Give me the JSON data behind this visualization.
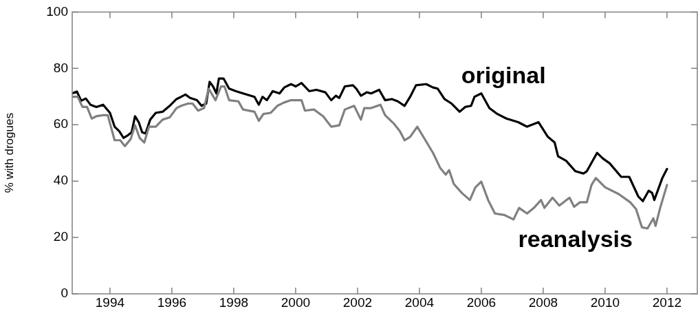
{
  "chart_data": {
    "type": "line",
    "ylabel": "% with drogues",
    "xlim": [
      1992.78,
      2012.98
    ],
    "xticks": [
      1994,
      1996,
      1998,
      2000,
      2002,
      2004,
      2006,
      2008,
      2010,
      2012
    ],
    "ylim": [
      0,
      100
    ],
    "yticks": [
      0,
      20,
      40,
      60,
      80,
      100
    ],
    "grid": false,
    "legend": false,
    "marker": "none",
    "line_style": "solid",
    "series": [
      {
        "name": "original",
        "color": "#000000",
        "x": [
          1992.78,
          1992.93,
          1993.07,
          1993.22,
          1993.37,
          1993.56,
          1993.78,
          1994.0,
          1994.15,
          1994.3,
          1994.44,
          1994.56,
          1994.7,
          1994.81,
          1994.93,
          1995.04,
          1995.15,
          1995.3,
          1995.48,
          1995.7,
          1995.93,
          1996.15,
          1996.3,
          1996.44,
          1996.59,
          1996.81,
          1996.96,
          1997.11,
          1997.22,
          1997.33,
          1997.44,
          1997.52,
          1997.67,
          1997.85,
          1998.07,
          1998.3,
          1998.67,
          1998.81,
          1998.93,
          1999.07,
          1999.26,
          1999.48,
          1999.63,
          1999.85,
          2000.0,
          2000.19,
          2000.44,
          2000.67,
          2000.96,
          2001.15,
          2001.3,
          2001.41,
          2001.59,
          2001.85,
          2001.96,
          2002.11,
          2002.3,
          2002.44,
          2002.7,
          2002.89,
          2003.11,
          2003.3,
          2003.52,
          2003.7,
          2003.89,
          2004.22,
          2004.44,
          2004.59,
          2004.81,
          2005.04,
          2005.3,
          2005.48,
          2005.67,
          2005.78,
          2006.0,
          2006.26,
          2006.52,
          2006.81,
          2007.19,
          2007.48,
          2007.85,
          2008.15,
          2008.37,
          2008.48,
          2008.74,
          2009.04,
          2009.3,
          2009.41,
          2009.74,
          2009.93,
          2010.15,
          2010.52,
          2010.78,
          2011.07,
          2011.22,
          2011.41,
          2011.52,
          2011.59,
          2011.7,
          2011.85,
          2012.0
        ],
        "values": [
          71.1,
          71.8,
          68.5,
          69.3,
          67.1,
          66.3,
          67.1,
          64.2,
          59.3,
          57.7,
          55.3,
          56.1,
          57.3,
          63.0,
          60.9,
          57.3,
          56.9,
          61.8,
          64.2,
          64.6,
          66.7,
          69.1,
          69.9,
          70.7,
          69.5,
          68.7,
          66.7,
          67.5,
          75.2,
          73.6,
          71.1,
          76.4,
          76.4,
          72.8,
          71.9,
          71.1,
          69.9,
          67.1,
          69.9,
          68.7,
          71.9,
          71.1,
          73.2,
          74.4,
          73.6,
          74.8,
          71.9,
          72.4,
          71.5,
          68.7,
          70.3,
          69.5,
          73.6,
          74.0,
          72.8,
          70.3,
          71.5,
          71.1,
          72.4,
          68.7,
          69.1,
          68.3,
          66.7,
          69.9,
          74.0,
          74.4,
          73.2,
          72.8,
          69.1,
          67.5,
          64.6,
          66.3,
          66.7,
          69.9,
          71.1,
          65.9,
          63.8,
          62.2,
          60.9,
          59.3,
          60.9,
          55.7,
          53.7,
          48.8,
          47.2,
          43.5,
          42.7,
          43.5,
          50.0,
          48.0,
          46.3,
          41.5,
          41.5,
          34.6,
          32.9,
          36.6,
          35.8,
          33.3,
          36.6,
          41.1,
          44.3
        ]
      },
      {
        "name": "reanalysis",
        "color": "#808080",
        "x": [
          1992.78,
          1992.96,
          1993.11,
          1993.26,
          1993.41,
          1993.56,
          1993.78,
          1993.93,
          1994.07,
          1994.15,
          1994.33,
          1994.48,
          1994.67,
          1994.81,
          1994.96,
          1995.11,
          1995.26,
          1995.48,
          1995.7,
          1995.93,
          1996.15,
          1996.3,
          1996.52,
          1996.67,
          1996.85,
          1997.04,
          1997.19,
          1997.41,
          1997.59,
          1997.7,
          1997.85,
          1998.15,
          1998.3,
          1998.67,
          1998.81,
          1998.96,
          1999.19,
          1999.41,
          1999.63,
          1999.85,
          2000.19,
          2000.3,
          2000.59,
          2000.89,
          2001.15,
          2001.41,
          2001.59,
          2001.89,
          2002.11,
          2002.22,
          2002.44,
          2002.74,
          2002.89,
          2003.19,
          2003.37,
          2003.52,
          2003.7,
          2003.93,
          2004.15,
          2004.44,
          2004.67,
          2004.85,
          2004.96,
          2005.11,
          2005.37,
          2005.63,
          2005.81,
          2006.0,
          2006.22,
          2006.44,
          2006.74,
          2007.04,
          2007.22,
          2007.48,
          2007.7,
          2007.93,
          2008.04,
          2008.3,
          2008.52,
          2008.85,
          2009.0,
          2009.19,
          2009.41,
          2009.56,
          2009.7,
          2010.0,
          2010.44,
          2010.81,
          2011.0,
          2011.19,
          2011.37,
          2011.56,
          2011.63,
          2011.78,
          2012.0
        ],
        "values": [
          69.9,
          69.9,
          66.3,
          66.3,
          62.2,
          63.0,
          63.4,
          63.4,
          57.7,
          54.5,
          54.5,
          52.4,
          54.9,
          59.8,
          55.3,
          53.7,
          59.3,
          59.3,
          61.8,
          62.6,
          65.9,
          66.7,
          67.5,
          67.5,
          65.0,
          65.9,
          72.8,
          68.7,
          73.6,
          73.6,
          68.7,
          68.3,
          65.4,
          64.6,
          61.4,
          63.8,
          64.2,
          66.7,
          67.9,
          68.7,
          68.7,
          65.0,
          65.4,
          63.0,
          59.3,
          59.8,
          65.4,
          66.7,
          61.8,
          65.9,
          65.9,
          67.1,
          63.4,
          60.2,
          57.7,
          54.5,
          55.7,
          59.3,
          55.3,
          50.0,
          44.7,
          42.3,
          43.9,
          39.0,
          35.8,
          33.3,
          37.8,
          39.8,
          33.3,
          28.5,
          28.0,
          26.4,
          30.5,
          28.5,
          30.5,
          33.3,
          30.5,
          34.1,
          31.3,
          34.1,
          30.9,
          32.5,
          32.5,
          38.6,
          41.1,
          37.8,
          35.4,
          32.5,
          30.1,
          23.6,
          23.2,
          26.8,
          24.1,
          30.5,
          38.6
        ]
      }
    ]
  }
}
